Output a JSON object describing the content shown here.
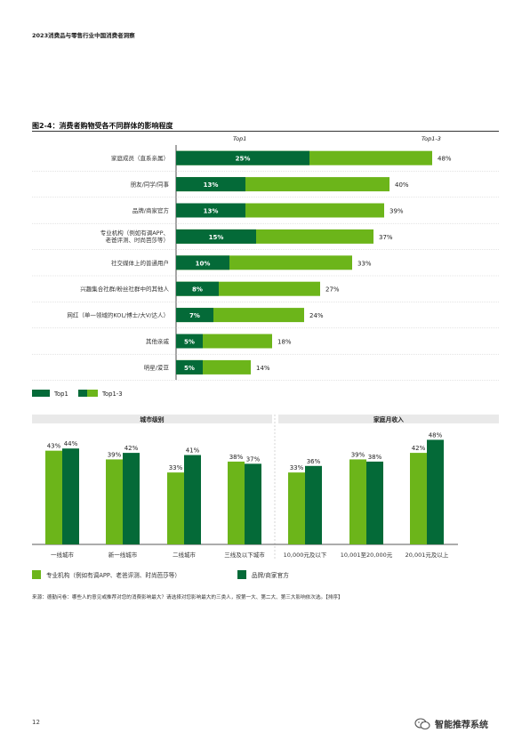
{
  "header": {
    "title": "2023消费品与零售行业中国消费者洞察"
  },
  "figure": {
    "title": "图2-4：消费者购物受各不同群体的影响程度"
  },
  "colors": {
    "dark_green": "#046A38",
    "light_green": "#6CB51A",
    "text": "#222222"
  },
  "chart_data": [
    {
      "type": "bar",
      "orientation": "horizontal",
      "column_headers": [
        "Top1",
        "Top1-3"
      ],
      "categories": [
        "家庭成员（直系亲属）",
        "朋友/同学/同事",
        "品牌/商家官方",
        "专业机构（例如有调APP、老爸评测、时尚芭莎等）",
        "社交媒体上的普通用户",
        "兴趣集合社群/粉丝社群中的其他人",
        "网红（单一领域的KOL/博士/大V/达人）",
        "其他亲戚",
        "明星/爱豆"
      ],
      "series": [
        {
          "name": "Top1",
          "color": "#046A38",
          "values": [
            25,
            13,
            13,
            15,
            10,
            8,
            7,
            5,
            5
          ],
          "labels": [
            "25%",
            "13%",
            "13%",
            "15%",
            "10%",
            "8%",
            "7%",
            "5%",
            "5%"
          ]
        },
        {
          "name": "Top1-3",
          "color": "#6CB51A",
          "values": [
            48,
            40,
            39,
            37,
            33,
            27,
            24,
            18,
            14
          ],
          "labels": [
            "48%",
            "40%",
            "39%",
            "37%",
            "33%",
            "27%",
            "24%",
            "18%",
            "14%"
          ]
        }
      ],
      "legend": [
        "Top1",
        "Top1-3"
      ],
      "legend_position": "bottom-left"
    },
    {
      "type": "bar",
      "orientation": "vertical",
      "groups": [
        {
          "title": "城市级别",
          "categories": [
            "一线城市",
            "新一线城市",
            "二线城市",
            "三线及以下城市"
          ]
        },
        {
          "title": "家庭月收入",
          "categories": [
            "10,000元及以下",
            "10,001至20,000元",
            "20,001元及以上"
          ]
        }
      ],
      "series": [
        {
          "name": "专业机构（例如有调APP、老爸评测、时尚芭莎等）",
          "color": "#6CB51A",
          "values": [
            43,
            39,
            33,
            38,
            33,
            39,
            42
          ],
          "labels": [
            "43%",
            "39%",
            "33%",
            "38%",
            "33%",
            "39%",
            "42%"
          ]
        },
        {
          "name": "品牌/商家官方",
          "color": "#046A38",
          "values": [
            44,
            42,
            41,
            37,
            36,
            38,
            48
          ],
          "labels": [
            "44%",
            "42%",
            "41%",
            "37%",
            "36%",
            "38%",
            "48%"
          ]
        }
      ],
      "legend_position": "bottom"
    }
  ],
  "source_note": "来源：德勤问卷：哪些人的意见或推荐对您的消费影响最大？请选择对您影响最大的三类人，按第一大、第二大、第三大影响依次选。【排序】",
  "page_number": "12",
  "watermark": {
    "text": "智能推荐系统",
    "icon": "wechat-icon"
  }
}
